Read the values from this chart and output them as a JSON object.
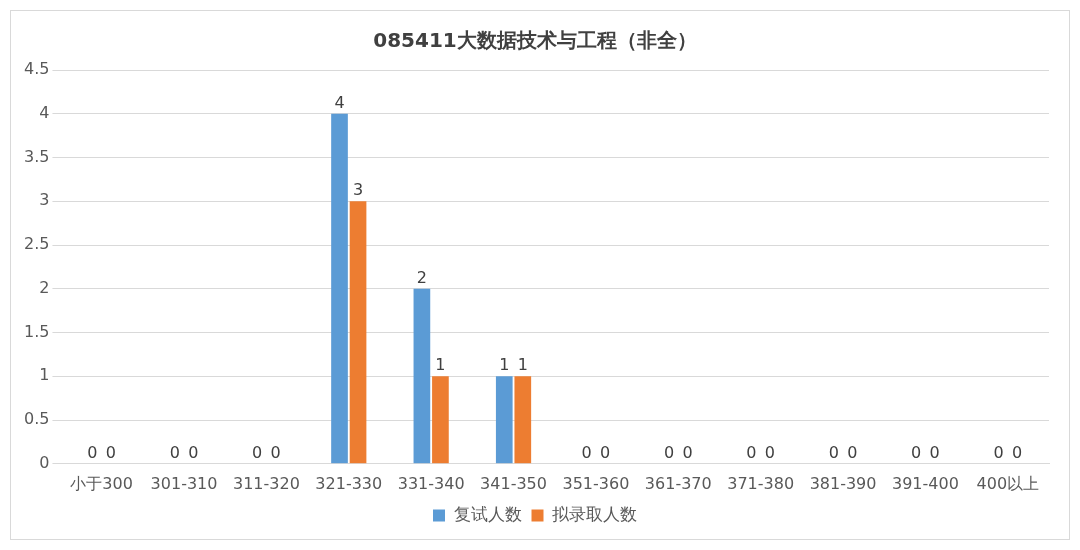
{
  "chart_data": {
    "type": "bar",
    "title": "085411大数据技术与工程（非全）",
    "categories": [
      "小于300",
      "301-310",
      "311-320",
      "321-330",
      "331-340",
      "341-350",
      "351-360",
      "361-370",
      "371-380",
      "381-390",
      "391-400",
      "400以上"
    ],
    "series": [
      {
        "name": "复试人数",
        "color": "#5b9bd5",
        "values": [
          0,
          0,
          0,
          4,
          2,
          1,
          0,
          0,
          0,
          0,
          0,
          0
        ]
      },
      {
        "name": "拟录取人数",
        "color": "#ed7d31",
        "values": [
          0,
          0,
          0,
          3,
          1,
          1,
          0,
          0,
          0,
          0,
          0,
          0
        ]
      }
    ],
    "ylim": [
      0,
      4.5
    ],
    "yticks": [
      0,
      0.5,
      1,
      1.5,
      2,
      2.5,
      3,
      3.5,
      4,
      4.5
    ],
    "grid": "y",
    "legend": "bottom",
    "data_labels": true
  }
}
